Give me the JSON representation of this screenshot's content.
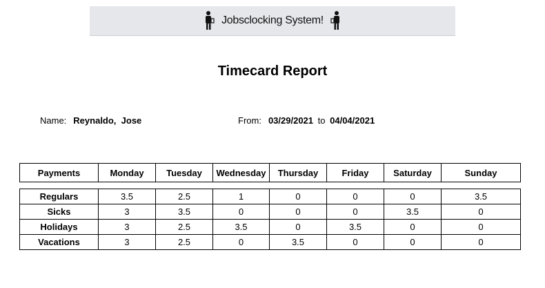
{
  "banner": {
    "title": "Jobsclocking System!",
    "left_icon": "worker-icon",
    "right_icon": "worker-icon"
  },
  "report": {
    "title": "Timecard Report"
  },
  "employee": {
    "name_label": "Name:",
    "name_value": "Reynaldo,  Jose"
  },
  "period": {
    "from_label": "From:",
    "from_value": "03/29/2021",
    "to_label": "to",
    "to_value": "04/04/2021"
  },
  "table": {
    "headers": [
      "Payments",
      "Monday",
      "Tuesday",
      "Wednesday",
      "Thursday",
      "Friday",
      "Saturday",
      "Sunday"
    ],
    "rows": [
      {
        "label": "Regulars",
        "values": [
          "3.5",
          "2.5",
          "1",
          "0",
          "0",
          "0",
          "3.5"
        ]
      },
      {
        "label": "Sicks",
        "values": [
          "3",
          "3.5",
          "0",
          "0",
          "0",
          "3.5",
          "0"
        ]
      },
      {
        "label": "Holidays",
        "values": [
          "3",
          "2.5",
          "3.5",
          "0",
          "3.5",
          "0",
          "0"
        ]
      },
      {
        "label": "Vacations",
        "values": [
          "3",
          "2.5",
          "0",
          "3.5",
          "0",
          "0",
          "0"
        ]
      }
    ]
  }
}
